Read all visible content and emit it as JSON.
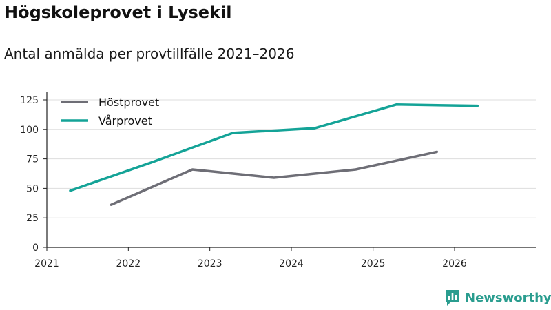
{
  "title": "Högskoleprovet i Lysekil",
  "subtitle": "Antal anmälda per provtillfälle 2021–2026",
  "brand": "Newsworthy",
  "colors": {
    "series_host": "#6e6e76",
    "series_var": "#14a397",
    "grid": "#dddddd",
    "axis": "#222222",
    "brand": "#2a9d8f"
  },
  "chart_data": {
    "type": "line",
    "title": "Högskoleprovet i Lysekil",
    "subtitle": "Antal anmälda per provtillfälle 2021–2026",
    "xlabel": "",
    "ylabel": "",
    "x_ticks": [
      "2021",
      "2022",
      "2023",
      "2024",
      "2025",
      "2026"
    ],
    "xlim": [
      "2021-01-01",
      "2026-12-31"
    ],
    "y_ticks": [
      "0",
      "25",
      "50",
      "75",
      "100",
      "125"
    ],
    "ylim": [
      0,
      125
    ],
    "grid": true,
    "legend_position": "top-left",
    "series": [
      {
        "name": "Höstprovet",
        "color": "#6e6e76",
        "x": [
          "2021-10-15",
          "2022-10-15",
          "2023-10-15",
          "2024-10-15",
          "2025-10-15"
        ],
        "y": [
          36,
          66,
          59,
          66,
          81
        ]
      },
      {
        "name": "Vårprovet",
        "color": "#14a397",
        "x": [
          "2021-04-15",
          "2022-04-15",
          "2023-04-15",
          "2024-04-15",
          "2025-04-15",
          "2026-04-15"
        ],
        "y": [
          48,
          72,
          97,
          101,
          121,
          120
        ]
      }
    ]
  }
}
